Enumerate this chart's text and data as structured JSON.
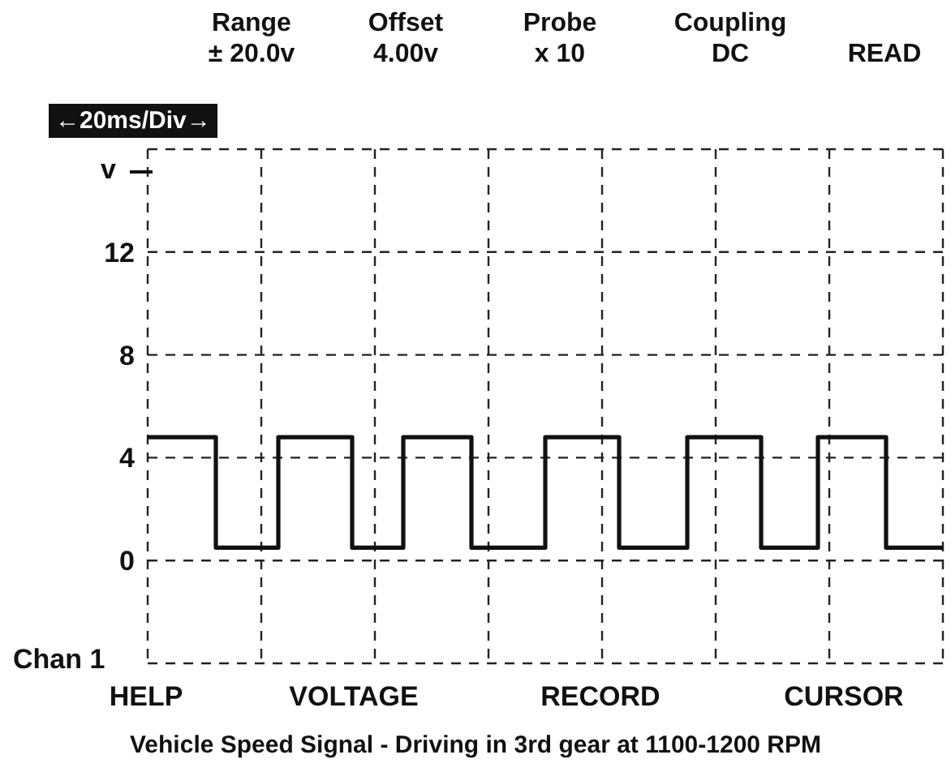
{
  "chart_data": {
    "type": "step",
    "title": "Vehicle Speed Signal - Driving in 3rd gear at 1100-1200 RPM",
    "ylabel": "v",
    "annotations": [
      "Range\n± 20.0v",
      "Offset\n4.00v",
      "Probe\nx 10",
      "Coupling\nDC",
      "READ",
      "←20ms/Div→",
      "HELP",
      "VOLTAGE",
      "RECORD",
      "CURSOR",
      "Chan 1"
    ],
    "categories": [
      null,
      null,
      null,
      null,
      null,
      null,
      null,
      null,
      null,
      null,
      null,
      null,
      null,
      null,
      null,
      null,
      null,
      null,
      null,
      null,
      null,
      null,
      null,
      null,
      null,
      null,
      null,
      null,
      null,
      null,
      null,
      null,
      null,
      null,
      null,
      null,
      null,
      null,
      null,
      null,
      null,
      null,
      null,
      null,
      null,
      null,
      null,
      null,
      null,
      null,
      null,
      null,
      null,
      null,
      null,
      null,
      null,
      null,
      null,
      null,
      null,
      null,
      null,
      null,
      null,
      null,
      null,
      null,
      null,
      null,
      null,
      null,
      null,
      null,
      null,
      null,
      null,
      null,
      null,
      null,
      null,
      null,
      null,
      null,
      null,
      null,
      null,
      null,
      null,
      null,
      null,
      null,
      null,
      null,
      null,
      null,
      null,
      null,
      null,
      null,
      null,
      null,
      null,
      null,
      null,
      null,
      null,
      null,
      null,
      null,
      null,
      null,
      null,
      null,
      null,
      null,
      null,
      null,
      null,
      null,
      null,
      null,
      null,
      null,
      null,
      null,
      null,
      null,
      null,
      null,
      null,
      null,
      null,
      null,
      null,
      null,
      null,
      null,
      null,
      null,
      null
    ],
    "series": [
      {
        "color": "#111111",
        "values": [
          4.8,
          4.8,
          4.8,
          4.8,
          4.8,
          4.8,
          4.8,
          4.8,
          4.8,
          4.8,
          4.8,
          4.8,
          0.5,
          0.5,
          0.5,
          0.5,
          0.5,
          0.5,
          0.5,
          0.5,
          0.5,
          0.5,
          0.5,
          4.8,
          4.8,
          4.8,
          4.8,
          4.8,
          4.8,
          4.8,
          4.8,
          4.8,
          4.8,
          4.8,
          4.8,
          4.8,
          0.5,
          0.5,
          0.5,
          0.5,
          0.5,
          0.5,
          0.5,
          0.5,
          0.5,
          4.8,
          4.8,
          4.8,
          4.8,
          4.8,
          4.8,
          4.8,
          4.8,
          4.8,
          4.8,
          4.8,
          4.8,
          0.5,
          0.5,
          0.5,
          0.5,
          0.5,
          0.5,
          0.5,
          0.5,
          0.5,
          0.5,
          0.5,
          0.5,
          0.5,
          4.8,
          4.8,
          4.8,
          4.8,
          4.8,
          4.8,
          4.8,
          4.8,
          4.8,
          4.8,
          4.8,
          4.8,
          4.8,
          0.5,
          0.5,
          0.5,
          0.5,
          0.5,
          0.5,
          0.5,
          0.5,
          0.5,
          0.5,
          0.5,
          0.5,
          4.8,
          4.8,
          4.8,
          4.8,
          4.8,
          4.8,
          4.8,
          4.8,
          4.8,
          4.8,
          4.8,
          4.8,
          4.8,
          0.5,
          0.5,
          0.5,
          0.5,
          0.5,
          0.5,
          0.5,
          0.5,
          0.5,
          0.5,
          4.8,
          4.8,
          4.8,
          4.8,
          4.8,
          4.8,
          4.8,
          4.8,
          4.8,
          4.8,
          4.8,
          4.8,
          0.5,
          0.5,
          0.5,
          0.5,
          0.5,
          0.5,
          0.5,
          0.5,
          0.5,
          0.5,
          0.5
        ]
      }
    ],
    "ylim": [
      -4,
      16
    ],
    "yticks": [
      {
        "value": -4,
        "label": null
      },
      0,
      4,
      8,
      12,
      {
        "value": 16,
        "label": null
      }
    ],
    "tick_labels": "y",
    "grid": true
  }
}
